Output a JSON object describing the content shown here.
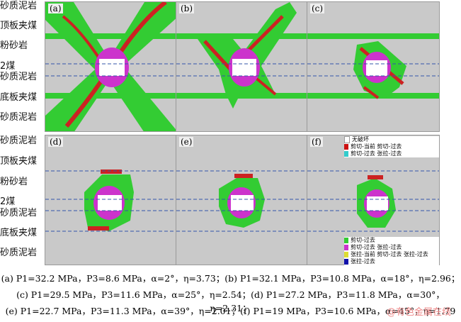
{
  "strata_top": [
    "砂质泥岩",
    "顶板夹煤",
    "粉砂岩",
    "2煤",
    "砂质泥岩",
    "底板夹煤",
    "砂质泥岩"
  ],
  "strata_bottom": [
    "砂质泥岩",
    "顶板夹煤",
    "粉砂岩",
    "2煤",
    "砂质泥岩",
    "底板夹煤",
    "砂质泥岩"
  ],
  "panels": [
    {
      "tag": "(a)"
    },
    {
      "tag": "(b)"
    },
    {
      "tag": "(c)"
    },
    {
      "tag": "(d)"
    },
    {
      "tag": "(e)"
    },
    {
      "tag": "(f)"
    }
  ],
  "legend_top": {
    "items": [
      {
        "label": "无破坏",
        "color": "#ffffff"
      },
      {
        "label": "剪切-当前 剪切-过去",
        "color": "#cc1111"
      },
      {
        "label": "剪切-过去 张拉-过去",
        "color": "#33cccc"
      }
    ]
  },
  "legend_bottom": {
    "items": [
      {
        "label": "剪切-过去",
        "color": "#33cc33"
      },
      {
        "label": "剪切-过去 张拉-过去",
        "color": "#cc33cc"
      },
      {
        "label": "张拉-当前 剪切-过去 张拉-过去",
        "color": "#dddd33"
      },
      {
        "label": "张拉-过去",
        "color": "#1111aa"
      }
    ]
  },
  "captions": [
    "(a) P1=32.2 MPa，P3=8.6 MPa，α=2°，η=3.73；(b) P1=32.1 MPa，P3=10.8 MPa，α=18°，η=2.96；",
    "(c) P1=29.5 MPa，P3=11.6 MPa，α=25°，η=2.54；(d) P1=27.2 MPa，P3=11.8 MPa，α=30°，η=2.31；",
    "(e) P1=22.7 MPa，P3=11.3 MPa，α=39°，η=2.01；(f) P1=19 MPa，P3=10.6 MPa，α=45°，η=1.79"
  ],
  "watermark": "@有色金属在线",
  "colors": {
    "intact": "#c9c9c9",
    "green": "#33cc33",
    "red": "#cc2222",
    "magenta": "#cc33cc",
    "cyan": "#33cccc",
    "opening": "#ffffff"
  }
}
